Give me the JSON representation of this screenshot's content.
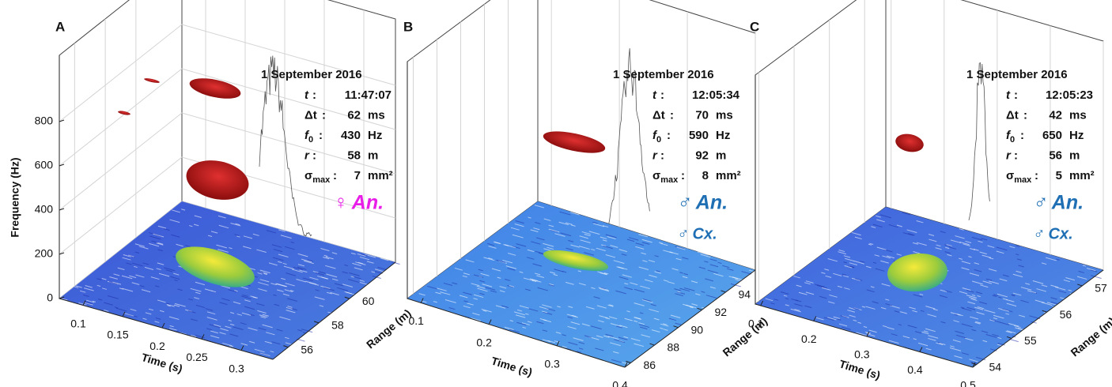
{
  "chart_data": [
    {
      "type": "surface3d",
      "panel": "A",
      "xlabel": "Time (s)",
      "ylabel": "Range (m)",
      "zlabel": "Frequency (Hz)",
      "xlim": [
        0.07,
        0.34
      ],
      "xticks": [
        0.1,
        0.15,
        0.2,
        0.25,
        0.3
      ],
      "ylim": [
        55,
        63
      ],
      "yticks": [
        56,
        58,
        60
      ],
      "zlim": [
        0,
        1100
      ],
      "zticks": [
        0,
        200,
        400,
        600,
        800
      ],
      "date": "1 September 2016",
      "rows": [
        {
          "name": "t",
          "value": "11:47:07"
        },
        {
          "name": "Δt",
          "value": "62",
          "unit": "ms"
        },
        {
          "name": "f",
          "sub": "0",
          "value": "430",
          "unit": "Hz"
        },
        {
          "name": "r",
          "value": "58",
          "unit": "m"
        },
        {
          "name": "σ",
          "sub": "max",
          "value": "7",
          "unit": "mm²"
        }
      ],
      "species": [
        {
          "text": "♀ An.",
          "color": "#e81ee8"
        }
      ]
    },
    {
      "type": "surface3d",
      "panel": "B",
      "xlabel": "Time (s)",
      "ylabel": "Range (m)",
      "xlim": [
        0.08,
        0.4
      ],
      "xticks": [
        0.1,
        0.2,
        0.3,
        0.4
      ],
      "ylim": [
        85.5,
        96.5
      ],
      "yticks": [
        86,
        88,
        90,
        92,
        94
      ],
      "zlim": [
        0,
        1100
      ],
      "date": "1 September 2016",
      "rows": [
        {
          "name": "t",
          "value": "12:05:34"
        },
        {
          "name": "Δt",
          "value": "70",
          "unit": "ms"
        },
        {
          "name": "f",
          "sub": "0",
          "value": "590",
          "unit": "Hz"
        },
        {
          "name": "r",
          "value": "92",
          "unit": "m"
        },
        {
          "name": "σ",
          "sub": "max",
          "value": "8",
          "unit": "mm²"
        }
      ],
      "species": [
        {
          "text": "♂ An.",
          "color": "#1f6fb4"
        },
        {
          "text": "♂ Cx.",
          "color": "#1f6fb4"
        }
      ]
    },
    {
      "type": "surface3d",
      "panel": "C",
      "xlabel": "Time (s)",
      "ylabel": "Range (m)",
      "xlim": [
        0.09,
        0.5
      ],
      "xticks": [
        0.1,
        0.2,
        0.3,
        0.4,
        0.5
      ],
      "ylim": [
        53.9,
        57.6
      ],
      "yticks": [
        54,
        55,
        56,
        57
      ],
      "zlim": [
        0,
        1100
      ],
      "date": "1 September 2016",
      "rows": [
        {
          "name": "t",
          "value": "12:05:23"
        },
        {
          "name": "Δt",
          "value": "42",
          "unit": "ms"
        },
        {
          "name": "f",
          "sub": "0",
          "value": "650",
          "unit": "Hz"
        },
        {
          "name": "r",
          "value": "56",
          "unit": "m"
        },
        {
          "name": "σ",
          "sub": "max",
          "value": "5",
          "unit": "mm²"
        }
      ],
      "species": [
        {
          "text": "♂ An.",
          "color": "#1f6fb4"
        },
        {
          "text": "♂ Cx.",
          "color": "#1f6fb4"
        }
      ]
    }
  ]
}
